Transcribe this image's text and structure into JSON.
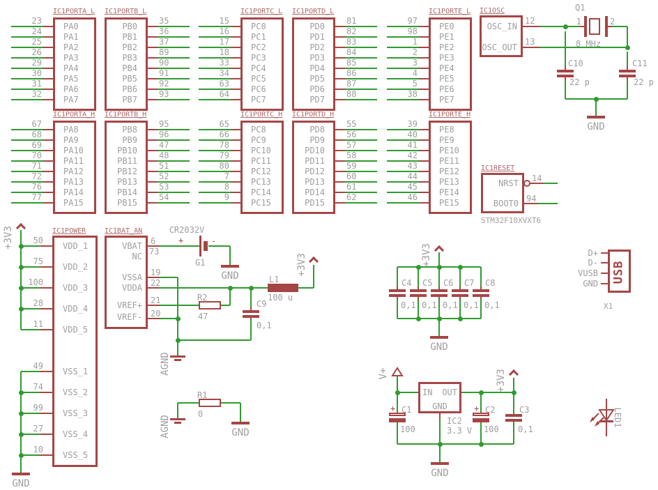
{
  "colors": {
    "wire": "#2f9b2f",
    "symbol": "#a64545",
    "text_gray": "#9e9e9e",
    "name_label": "#ad6a6a",
    "background": "#ffffff"
  },
  "ports": [
    {
      "name": "IC1PORTA_L",
      "pins": [
        {
          "num": "23",
          "label": "PA0"
        },
        {
          "num": "24",
          "label": "PA1"
        },
        {
          "num": "25",
          "label": "PA2"
        },
        {
          "num": "26",
          "label": "PA3"
        },
        {
          "num": "29",
          "label": "PA4"
        },
        {
          "num": "30",
          "label": "PA5"
        },
        {
          "num": "31",
          "label": "PA6"
        },
        {
          "num": "32",
          "label": "PA7"
        }
      ]
    },
    {
      "name": "IC1PORTB_L",
      "pins": [
        {
          "num": "35",
          "label": "PB0"
        },
        {
          "num": "36",
          "label": "PB1"
        },
        {
          "num": "37",
          "label": "PB2"
        },
        {
          "num": "89",
          "label": "PB3"
        },
        {
          "num": "90",
          "label": "PB4"
        },
        {
          "num": "91",
          "label": "PB5"
        },
        {
          "num": "92",
          "label": "PB6"
        },
        {
          "num": "93",
          "label": "PB7"
        }
      ]
    },
    {
      "name": "IC1PORTC_L",
      "pins": [
        {
          "num": "15",
          "label": "PC0"
        },
        {
          "num": "16",
          "label": "PC1"
        },
        {
          "num": "17",
          "label": "PC2"
        },
        {
          "num": "18",
          "label": "PC3"
        },
        {
          "num": "33",
          "label": "PC4"
        },
        {
          "num": "34",
          "label": "PC5"
        },
        {
          "num": "63",
          "label": "PC6"
        },
        {
          "num": "64",
          "label": "PC7"
        }
      ]
    },
    {
      "name": "IC1PORTD_L",
      "pins": [
        {
          "num": "81",
          "label": "PD0"
        },
        {
          "num": "82",
          "label": "PD1"
        },
        {
          "num": "83",
          "label": "PD2"
        },
        {
          "num": "84",
          "label": "PD3"
        },
        {
          "num": "85",
          "label": "PD4"
        },
        {
          "num": "86",
          "label": "PD5"
        },
        {
          "num": "87",
          "label": "PD6"
        },
        {
          "num": "88",
          "label": "PD7"
        }
      ]
    },
    {
      "name": "IC1PORTE_L",
      "pins": [
        {
          "num": "97",
          "label": "PE0"
        },
        {
          "num": "98",
          "label": "PE1"
        },
        {
          "num": "1",
          "label": "PE2"
        },
        {
          "num": "2",
          "label": "PE3"
        },
        {
          "num": "3",
          "label": "PE4"
        },
        {
          "num": "4",
          "label": "PE5"
        },
        {
          "num": "5",
          "label": "PE6"
        },
        {
          "num": "38",
          "label": "PE7"
        }
      ]
    },
    {
      "name": "IC1PORTA_H",
      "pins": [
        {
          "num": "67",
          "label": "PA8"
        },
        {
          "num": "68",
          "label": "PA9"
        },
        {
          "num": "69",
          "label": "PA10"
        },
        {
          "num": "70",
          "label": "PA11"
        },
        {
          "num": "71",
          "label": "PA12"
        },
        {
          "num": "72",
          "label": "PA13"
        },
        {
          "num": "76",
          "label": "PA14"
        },
        {
          "num": "77",
          "label": "PA15"
        }
      ]
    },
    {
      "name": "IC1PORTB_H",
      "pins": [
        {
          "num": "95",
          "label": "PB8"
        },
        {
          "num": "96",
          "label": "PB9"
        },
        {
          "num": "47",
          "label": "PB10"
        },
        {
          "num": "48",
          "label": "PB11"
        },
        {
          "num": "51",
          "label": "PB12"
        },
        {
          "num": "52",
          "label": "PB13"
        },
        {
          "num": "53",
          "label": "PB14"
        },
        {
          "num": "54",
          "label": "PB15"
        }
      ]
    },
    {
      "name": "IC1PORTC_H",
      "pins": [
        {
          "num": "65",
          "label": "PC8"
        },
        {
          "num": "66",
          "label": "PC9"
        },
        {
          "num": "78",
          "label": "PC10"
        },
        {
          "num": "79",
          "label": "PC11"
        },
        {
          "num": "80",
          "label": "PC12"
        },
        {
          "num": "7",
          "label": "PC13"
        },
        {
          "num": "8",
          "label": "PC14"
        },
        {
          "num": "9",
          "label": "PC15"
        }
      ]
    },
    {
      "name": "IC1PORTD_H",
      "pins": [
        {
          "num": "55",
          "label": "PD8"
        },
        {
          "num": "56",
          "label": "PD9"
        },
        {
          "num": "57",
          "label": "PD10"
        },
        {
          "num": "58",
          "label": "PD11"
        },
        {
          "num": "59",
          "label": "PD12"
        },
        {
          "num": "60",
          "label": "PD13"
        },
        {
          "num": "61",
          "label": "PD14"
        },
        {
          "num": "62",
          "label": "PD15"
        }
      ]
    },
    {
      "name": "IC1PORTE_H",
      "pins": [
        {
          "num": "39",
          "label": "PE8"
        },
        {
          "num": "40",
          "label": "PE9"
        },
        {
          "num": "41",
          "label": "PE10"
        },
        {
          "num": "42",
          "label": "PE11"
        },
        {
          "num": "43",
          "label": "PE12"
        },
        {
          "num": "44",
          "label": "PE13"
        },
        {
          "num": "45",
          "label": "PE14"
        },
        {
          "num": "46",
          "label": "PE15"
        }
      ]
    }
  ],
  "osc": {
    "name": "IC1OSC",
    "pins": [
      {
        "label": "OSC_IN",
        "num": "12"
      },
      {
        "label": "OSC_OUT",
        "num": "13"
      }
    ]
  },
  "reset": {
    "name": "IC1RESET",
    "pins": [
      {
        "label": "NRST",
        "num": "14"
      },
      {
        "label": "BOOT0",
        "num": "94"
      }
    ],
    "part_value": "STM32F10XVXT6"
  },
  "power": {
    "name": "IC1POWER",
    "vdd_pins": [
      {
        "num": "50",
        "label": "VDD_1"
      },
      {
        "num": "75",
        "label": "VDD_2"
      },
      {
        "num": "100",
        "label": "VDD_3"
      },
      {
        "num": "28",
        "label": "VDD_4"
      },
      {
        "num": "11",
        "label": "VDD_5"
      }
    ],
    "vss_pins": [
      {
        "num": "49",
        "label": "VSS_1"
      },
      {
        "num": "74",
        "label": "VSS_2"
      },
      {
        "num": "99",
        "label": "VSS_3"
      },
      {
        "num": "27",
        "label": "VSS_4"
      },
      {
        "num": "10",
        "label": "VSS_5"
      }
    ]
  },
  "bat_an": {
    "name": "IC1BAT_AN",
    "pins": [
      {
        "num": "6",
        "label": "VBAT"
      },
      {
        "num": "73",
        "label": "NC"
      },
      {
        "num": "19",
        "label": "VSSA"
      },
      {
        "num": "22",
        "label": "VDDA"
      },
      {
        "num": "21",
        "label": "VREF+"
      },
      {
        "num": "20",
        "label": "VREF-"
      }
    ]
  },
  "battery": {
    "value": "CR2032V",
    "ref": "G1",
    "plus": "+",
    "minus": "-"
  },
  "crystal": {
    "ref": "Q1",
    "value": "8 MHz",
    "pin1": "1",
    "pin2": "2"
  },
  "inductor": {
    "ref": "L1",
    "value": "100 u"
  },
  "resistors": {
    "r2": {
      "ref": "R2",
      "value": "47"
    },
    "r1": {
      "ref": "R1",
      "value": "0"
    }
  },
  "caps": {
    "c10": {
      "ref": "C10",
      "value": "22 p"
    },
    "c11": {
      "ref": "C11",
      "value": "22 p"
    },
    "c9": {
      "ref": "C9",
      "value": "0,1"
    },
    "bank": [
      {
        "ref": "C4",
        "value": "0,1"
      },
      {
        "ref": "C5",
        "value": "0,1"
      },
      {
        "ref": "C6",
        "value": "0,1"
      },
      {
        "ref": "C7",
        "value": "0,1"
      },
      {
        "ref": "C8",
        "value": "0,1"
      }
    ],
    "c1": {
      "ref": "C1",
      "value": "100",
      "plus": "+"
    },
    "c2": {
      "ref": "C2",
      "value": "100",
      "plus": "+"
    },
    "c3": {
      "ref": "C3",
      "value": "0,1"
    }
  },
  "regulator": {
    "ref": "IC2",
    "value": "3.3 V",
    "pin_in": "IN",
    "pin_out": "OUT",
    "pin_gnd": "GND"
  },
  "usb": {
    "ref": "X1",
    "label": "USB",
    "pins": [
      "D+",
      "D-",
      "VUSB",
      "GND"
    ]
  },
  "led": {
    "ref": "LED1"
  },
  "net_labels": {
    "v3": "+3V3",
    "gnd": "GND",
    "agnd": "AGND",
    "vplus": "V+"
  }
}
